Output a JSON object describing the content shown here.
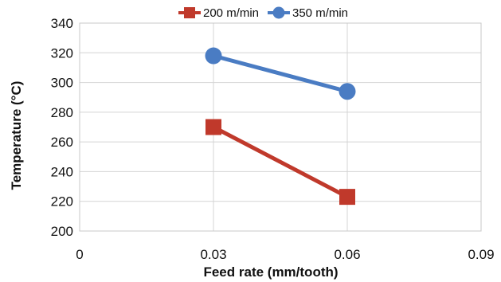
{
  "chart_data": {
    "type": "line",
    "title": "",
    "xlabel": "Feed rate (mm/tooth)",
    "ylabel": "Temperature (°C)",
    "xlim": [
      0,
      0.09
    ],
    "ylim": [
      200,
      340
    ],
    "x_ticks": [
      0,
      0.03,
      0.06,
      0.09
    ],
    "x_tick_labels": [
      "0",
      "0.03",
      "0.06",
      "0.09"
    ],
    "y_ticks": [
      200,
      220,
      240,
      260,
      280,
      300,
      320,
      340
    ],
    "y_tick_labels": [
      "200",
      "220",
      "240",
      "260",
      "280",
      "300",
      "320",
      "340"
    ],
    "grid": {
      "horizontal": true,
      "vertical": true
    },
    "legend": "top",
    "series": [
      {
        "name": "200 m/min",
        "color": "#c0392b",
        "marker": "square",
        "x": [
          0.03,
          0.06
        ],
        "values": [
          270,
          223
        ]
      },
      {
        "name": "350 m/min",
        "color": "#4a7cc3",
        "marker": "circle",
        "x": [
          0.03,
          0.06
        ],
        "values": [
          318,
          294
        ]
      }
    ]
  }
}
